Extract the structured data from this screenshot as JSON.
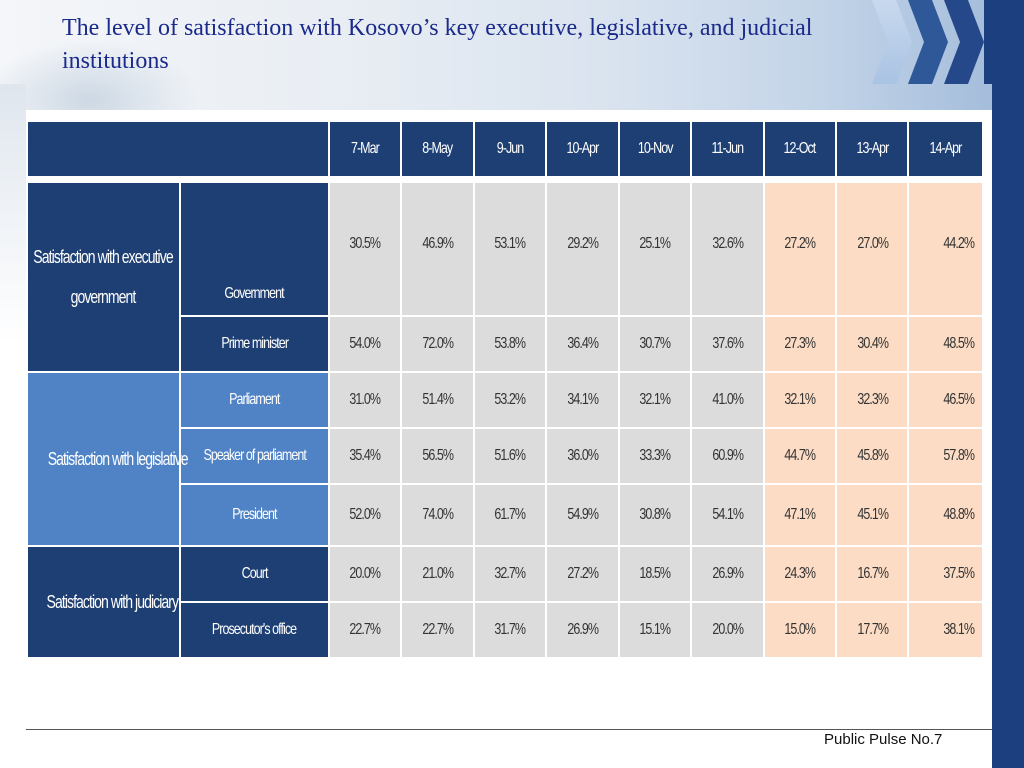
{
  "title": "The level of satisfaction with Kosovo’s key executive, legislative, and judicial institutions",
  "columns": [
    "7-Mar",
    "8-May",
    "9-Jun",
    "10-Apr",
    "10-Nov",
    "11-Jun",
    "12-Oct",
    "13-Apr",
    "14-Apr"
  ],
  "groups": {
    "executive": "Satisfaction with executive government",
    "legislative": "Satisfaction with legislative",
    "judiciary": "Satisfaction with judiciary"
  },
  "rows": [
    {
      "label": "Government",
      "values": [
        "30.5%",
        "46.9%",
        "53.1%",
        "29.2%",
        "25.1%",
        "32.6%",
        "27.2%",
        "27.0%",
        "44.2%"
      ]
    },
    {
      "label": "Prime minister",
      "values": [
        "54.0%",
        "72.0%",
        "53.8%",
        "36.4%",
        "30.7%",
        "37.6%",
        "27.3%",
        "30.4%",
        "48.5%"
      ]
    },
    {
      "label": "Parliament",
      "values": [
        "31.0%",
        "51.4%",
        "53.2%",
        "34.1%",
        "32.1%",
        "41.0%",
        "32.1%",
        "32.3%",
        "46.5%"
      ]
    },
    {
      "label": "Speaker of parliament",
      "values": [
        "35.4%",
        "56.5%",
        "51.6%",
        "36.0%",
        "33.3%",
        "60.9%",
        "44.7%",
        "45.8%",
        "57.8%"
      ]
    },
    {
      "label": "President",
      "values": [
        "52.0%",
        "74.0%",
        "61.7%",
        "54.9%",
        "30.8%",
        "54.1%",
        "47.1%",
        "45.1%",
        "48.8%"
      ]
    },
    {
      "label": "Court",
      "values": [
        "20.0%",
        "21.0%",
        "32.7%",
        "27.2%",
        "18.5%",
        "26.9%",
        "24.3%",
        "16.7%",
        "37.5%"
      ]
    },
    {
      "label": "Prosecutor's office",
      "values": [
        "22.7%",
        "22.7%",
        "31.7%",
        "26.9%",
        "15.1%",
        "20.0%",
        "15.0%",
        "17.7%",
        "38.1%"
      ]
    }
  ],
  "footer": "Public Pulse No.7",
  "colors": {
    "dark_blue": "#1e3f73",
    "light_blue": "#4f83c6",
    "grey": "#dcdcdc",
    "peach": "#fcdcc4"
  }
}
